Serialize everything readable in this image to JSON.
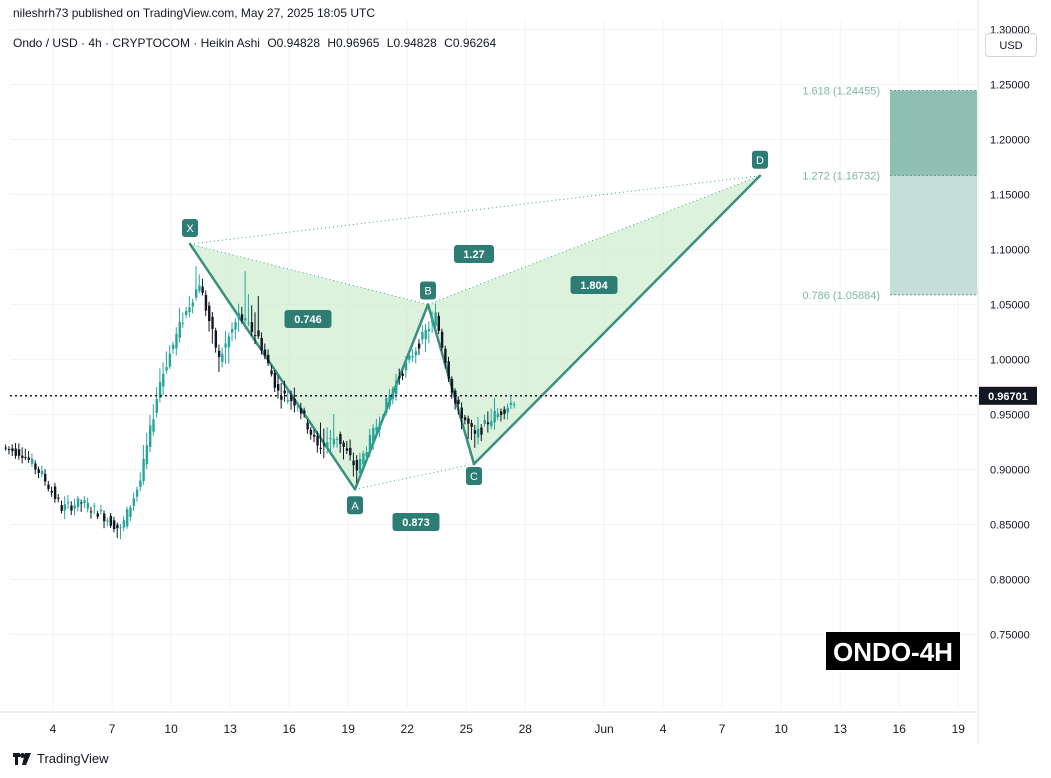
{
  "header": {
    "credit": "nileshrh73 published on TradingView.com, May 27, 2025 18:05 UTC",
    "symbol": "Ondo / USD · 4h · CRYPTOCOM · Heikin Ashi",
    "open": "O0.94828",
    "high": "H0.96965",
    "low": "L0.94828",
    "close": "C0.96264",
    "currency": "USD"
  },
  "footer": {
    "brand": "TradingView"
  },
  "colors": {
    "up": "#26a69a",
    "down": "#131722",
    "pattern_line": "#3a8f80",
    "pattern_fill": "#c9ebc9",
    "label_bg": "#2e7d74",
    "zone_dark": "#8fbfb1",
    "zone_light": "#c4ddd6"
  },
  "chart_data": {
    "type": "candlestick",
    "title": "ONDO-4H",
    "x_ticks": [
      "4",
      "7",
      "10",
      "13",
      "16",
      "19",
      "22",
      "25",
      "28",
      "Jun",
      "4",
      "7",
      "10",
      "13",
      "16",
      "19"
    ],
    "y_ticks": [
      "1.30000",
      "1.25000",
      "1.20000",
      "1.15000",
      "1.10000",
      "1.05000",
      "1.00000",
      "0.95000",
      "0.90000",
      "0.85000",
      "0.80000",
      "0.75000"
    ],
    "ylim": [
      0.725,
      1.31
    ],
    "current_price": "0.96701",
    "harmonic_pattern": {
      "points": [
        {
          "label": "X",
          "date": "May 11",
          "price": 1.105
        },
        {
          "label": "A",
          "date": "May 19",
          "price": 0.882
        },
        {
          "label": "B",
          "date": "May 23",
          "price": 1.05
        },
        {
          "label": "C",
          "date": "May 25",
          "price": 0.905
        },
        {
          "label": "D",
          "date": "Jun 9",
          "price": 1.167
        }
      ],
      "ratios": [
        {
          "label": "0.746"
        },
        {
          "label": "0.873"
        },
        {
          "label": "1.804"
        },
        {
          "label": "1.27"
        }
      ]
    },
    "fib_levels": [
      {
        "label": "1.618 (1.24455)",
        "value": 1.24455
      },
      {
        "label": "1.272 (1.16732)",
        "value": 1.16732
      },
      {
        "label": "0.786 (1.05884)",
        "value": 1.05884
      }
    ],
    "candles_approx": [
      {
        "date": "May 2",
        "o": 0.92,
        "h": 0.93,
        "l": 0.91,
        "c": 0.915
      },
      {
        "date": "May 3",
        "o": 0.915,
        "h": 0.925,
        "l": 0.89,
        "c": 0.895
      },
      {
        "date": "May 4",
        "o": 0.895,
        "h": 0.9,
        "l": 0.86,
        "c": 0.865
      },
      {
        "date": "May 5",
        "o": 0.865,
        "h": 0.88,
        "l": 0.855,
        "c": 0.87
      },
      {
        "date": "May 6",
        "o": 0.87,
        "h": 0.875,
        "l": 0.85,
        "c": 0.86
      },
      {
        "date": "May 7",
        "o": 0.86,
        "h": 0.865,
        "l": 0.83,
        "c": 0.845
      },
      {
        "date": "May 8",
        "o": 0.845,
        "h": 0.9,
        "l": 0.84,
        "c": 0.89
      },
      {
        "date": "May 9",
        "o": 0.89,
        "h": 1.0,
        "l": 0.885,
        "c": 0.98
      },
      {
        "date": "May 10",
        "o": 0.98,
        "h": 1.06,
        "l": 0.97,
        "c": 1.03
      },
      {
        "date": "May 11",
        "o": 1.03,
        "h": 1.105,
        "l": 1.02,
        "c": 1.07
      },
      {
        "date": "May 12",
        "o": 1.07,
        "h": 1.08,
        "l": 0.98,
        "c": 1.0
      },
      {
        "date": "May 13",
        "o": 1.0,
        "h": 1.06,
        "l": 0.97,
        "c": 1.04
      },
      {
        "date": "May 14",
        "o": 1.04,
        "h": 1.13,
        "l": 1.01,
        "c": 1.02
      },
      {
        "date": "May 15",
        "o": 1.02,
        "h": 1.03,
        "l": 0.96,
        "c": 0.97
      },
      {
        "date": "May 16",
        "o": 0.97,
        "h": 0.99,
        "l": 0.95,
        "c": 0.96
      },
      {
        "date": "May 17",
        "o": 0.96,
        "h": 0.97,
        "l": 0.91,
        "c": 0.92
      },
      {
        "date": "May 18",
        "o": 0.92,
        "h": 0.975,
        "l": 0.9,
        "c": 0.93
      },
      {
        "date": "May 19",
        "o": 0.93,
        "h": 0.94,
        "l": 0.88,
        "c": 0.9
      },
      {
        "date": "May 20",
        "o": 0.9,
        "h": 0.95,
        "l": 0.89,
        "c": 0.94
      },
      {
        "date": "May 21",
        "o": 0.94,
        "h": 0.99,
        "l": 0.93,
        "c": 0.98
      },
      {
        "date": "May 22",
        "o": 0.98,
        "h": 1.02,
        "l": 0.97,
        "c": 1.01
      },
      {
        "date": "May 23",
        "o": 1.01,
        "h": 1.05,
        "l": 0.99,
        "c": 1.04
      },
      {
        "date": "May 24",
        "o": 1.04,
        "h": 1.045,
        "l": 0.95,
        "c": 0.96
      },
      {
        "date": "May 25",
        "o": 0.96,
        "h": 0.965,
        "l": 0.905,
        "c": 0.93
      },
      {
        "date": "May 26",
        "o": 0.93,
        "h": 0.97,
        "l": 0.92,
        "c": 0.95
      },
      {
        "date": "May 27",
        "o": 0.948,
        "h": 0.97,
        "l": 0.94,
        "c": 0.963
      }
    ]
  }
}
